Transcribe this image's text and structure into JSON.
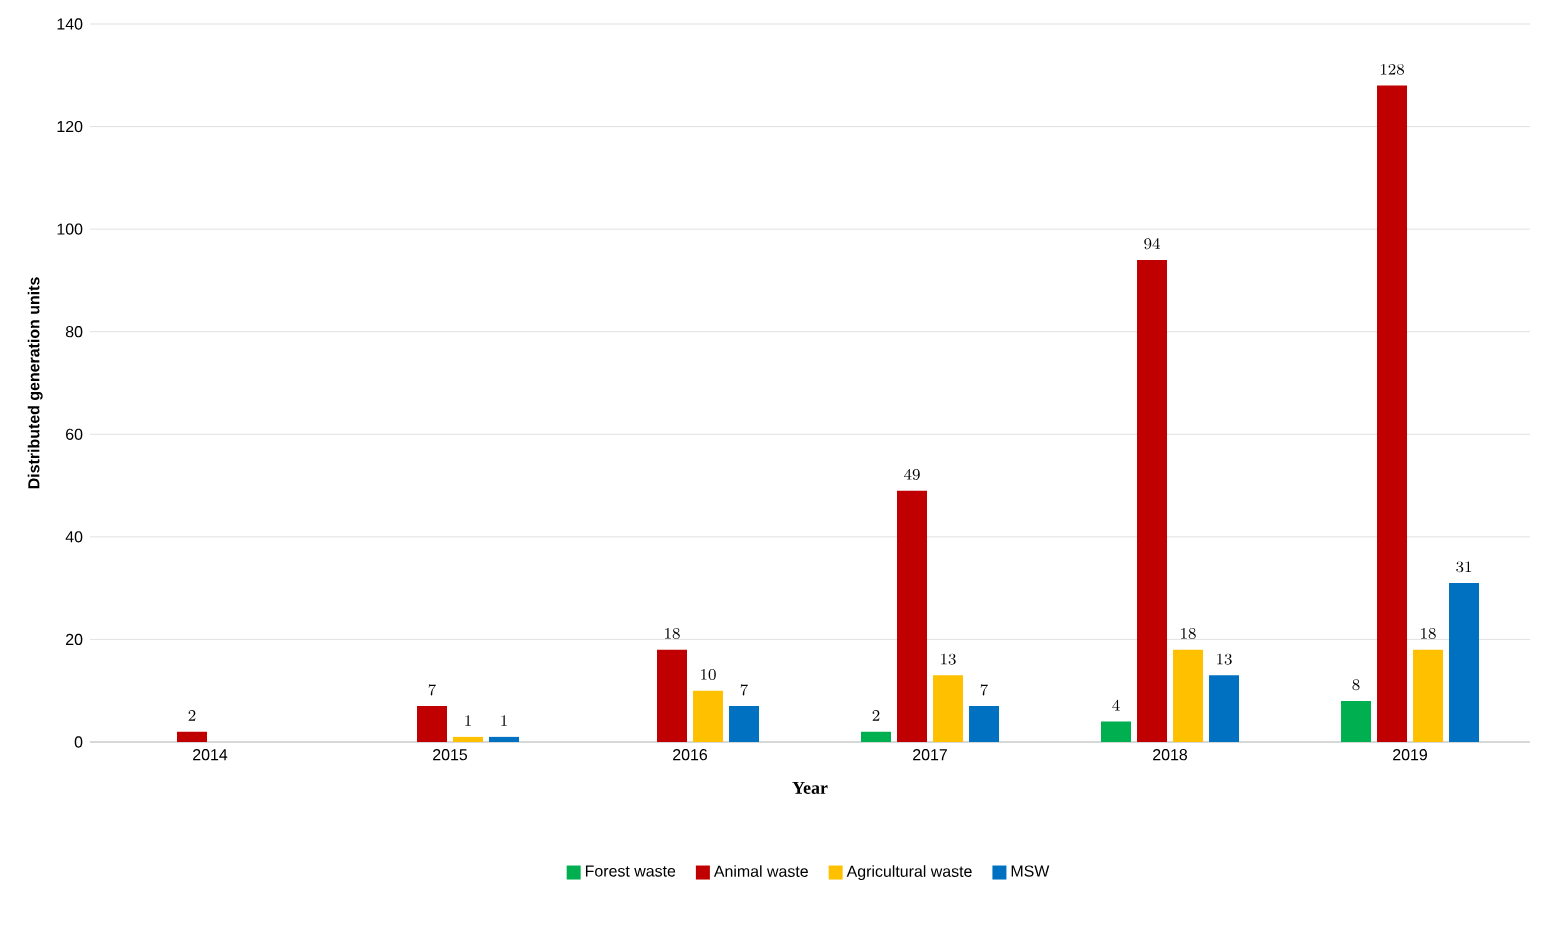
{
  "chart_data": {
    "type": "bar",
    "xlabel": "Year",
    "ylabel": "Distributed generation units",
    "categories": [
      "2014",
      "2015",
      "2016",
      "2017",
      "2018",
      "2019"
    ],
    "series": [
      {
        "name": "Forest waste",
        "color": "#00b050",
        "values": [
          null,
          null,
          null,
          2,
          4,
          8
        ]
      },
      {
        "name": "Animal waste",
        "color": "#c00000",
        "values": [
          2,
          7,
          18,
          49,
          94,
          128
        ]
      },
      {
        "name": "Agricultural waste",
        "color": "#ffc000",
        "values": [
          null,
          1,
          10,
          13,
          18,
          18
        ]
      },
      {
        "name": "MSW",
        "color": "#0070c0",
        "values": [
          null,
          1,
          7,
          7,
          13,
          31
        ]
      }
    ],
    "ylim": [
      0,
      140
    ],
    "yticks": [
      0,
      20,
      40,
      60,
      80,
      100,
      120,
      140
    ],
    "grid": "y",
    "legend": "bottom",
    "data_labels": true
  }
}
